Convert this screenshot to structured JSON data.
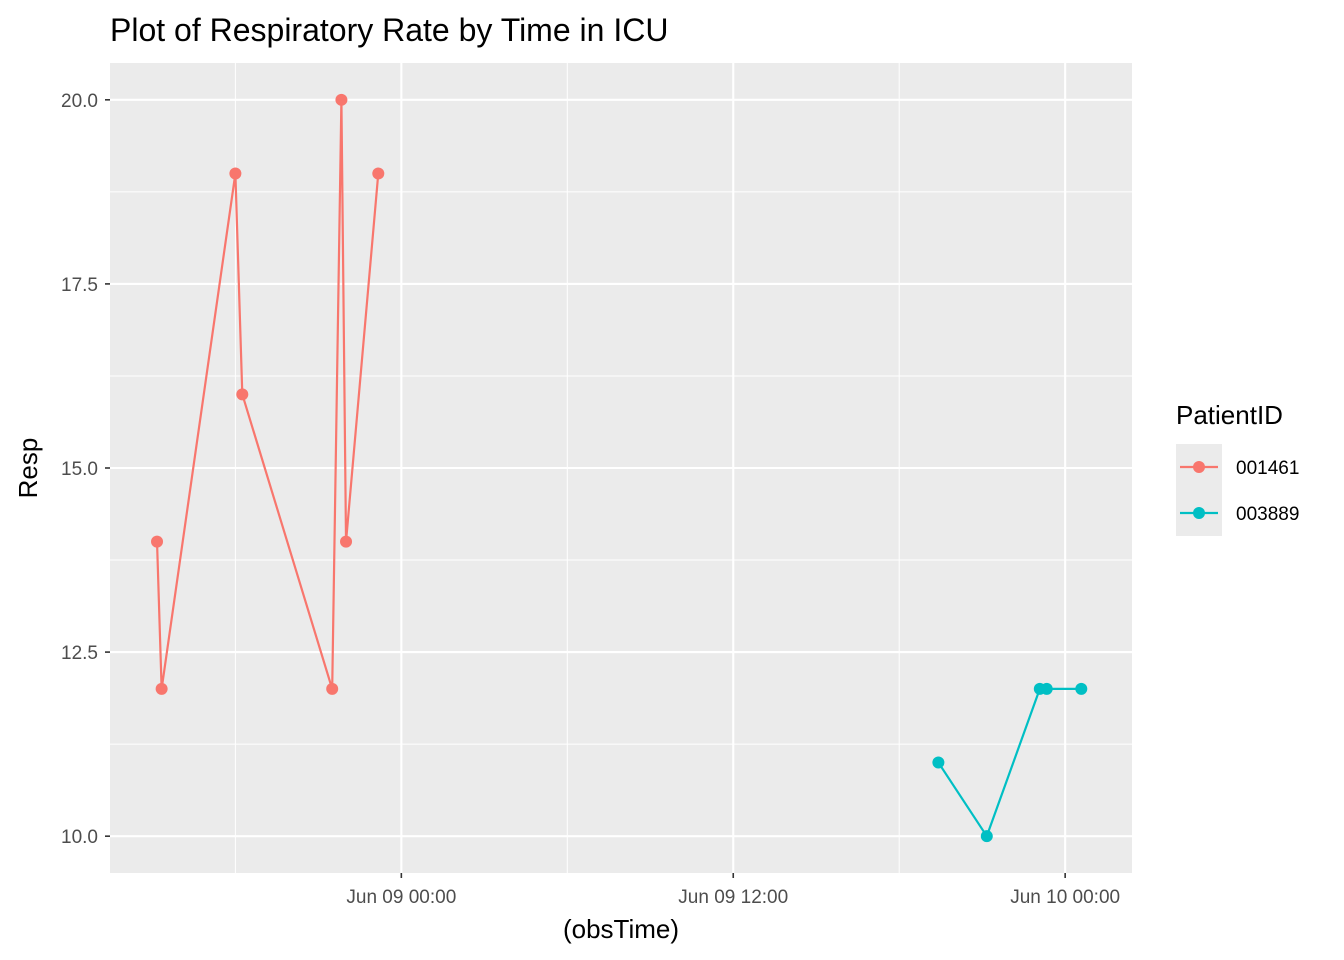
{
  "chart_data": {
    "type": "line",
    "title": "Plot of Respiratory Rate by Time in ICU",
    "xlabel": "(obsTime)",
    "ylabel": "Resp",
    "x_axis": {
      "type": "datetime",
      "ticks": [
        {
          "value": "2024-06-09T00:00",
          "label": "Jun 09 00:00"
        },
        {
          "value": "2024-06-09T12:00",
          "label": "Jun 09 12:00"
        },
        {
          "value": "2024-06-10T00:00",
          "label": "Jun 10 00:00"
        }
      ],
      "xlim": [
        "2024-06-08T13:28",
        "2024-06-10T02:25"
      ]
    },
    "y_axis": {
      "ticks": [
        10.0,
        12.5,
        15.0,
        17.5,
        20.0
      ],
      "tick_labels": [
        "10.0",
        "12.5",
        "15.0",
        "17.5",
        "20.0"
      ],
      "ylim": [
        9.5,
        20.5
      ]
    },
    "grid": true,
    "legend": {
      "title": "PatientID",
      "placement": "right"
    },
    "series": [
      {
        "name": "001461",
        "color": "#F8766D",
        "points": [
          {
            "x": "2024-06-08T15:10",
            "y": 14
          },
          {
            "x": "2024-06-08T15:20",
            "y": 12
          },
          {
            "x": "2024-06-08T18:00",
            "y": 19
          },
          {
            "x": "2024-06-08T18:15",
            "y": 16
          },
          {
            "x": "2024-06-08T21:30",
            "y": 12
          },
          {
            "x": "2024-06-08T21:50",
            "y": 20
          },
          {
            "x": "2024-06-08T22:00",
            "y": 14
          },
          {
            "x": "2024-06-08T23:10",
            "y": 19
          }
        ]
      },
      {
        "name": "003889",
        "color": "#00BFC4",
        "points": [
          {
            "x": "2024-06-09T19:25",
            "y": 11
          },
          {
            "x": "2024-06-09T21:10",
            "y": 10
          },
          {
            "x": "2024-06-09T23:05",
            "y": 12
          },
          {
            "x": "2024-06-09T23:20",
            "y": 12
          },
          {
            "x": "2024-06-10T00:35",
            "y": 12
          }
        ]
      }
    ]
  }
}
